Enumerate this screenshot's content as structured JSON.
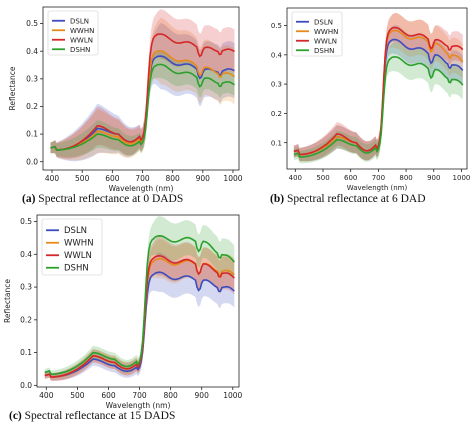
{
  "chart_data": [
    {
      "type": "line",
      "ylabel": "Reflectance",
      "xlabel": "Wavelength (nm)",
      "xlim": [
        370,
        1020
      ],
      "ylim": [
        -0.03,
        0.56
      ],
      "xticks": [
        400,
        500,
        600,
        700,
        800,
        900,
        1000
      ],
      "yticks": [
        0.0,
        0.1,
        0.2,
        0.3,
        0.4,
        0.5
      ],
      "legend_position": "top-left",
      "shaded_band": "spread around each series",
      "series": [
        {
          "name": "DSLN",
          "color": "#3b4cc0",
          "mean_at_x": {
            "400": 0.05,
            "550": 0.12,
            "700": 0.1,
            "760": 0.38,
            "900": 0.33,
            "1000": 0.33
          },
          "band_at_x": {
            "400": 0.02,
            "550": 0.09,
            "700": 0.04,
            "760": 0.12,
            "900": 0.1,
            "1000": 0.1
          }
        },
        {
          "name": "WWHN",
          "color": "#e88a1a",
          "mean_at_x": {
            "400": 0.05,
            "550": 0.11,
            "700": 0.09,
            "760": 0.4,
            "900": 0.34,
            "1000": 0.31
          },
          "band_at_x": {
            "400": 0.02,
            "550": 0.08,
            "700": 0.04,
            "760": 0.12,
            "900": 0.1,
            "1000": 0.1
          }
        },
        {
          "name": "WWLN",
          "color": "#d62728",
          "mean_at_x": {
            "400": 0.05,
            "550": 0.13,
            "700": 0.1,
            "760": 0.46,
            "900": 0.41,
            "1000": 0.4
          },
          "band_at_x": {
            "400": 0.02,
            "550": 0.07,
            "700": 0.04,
            "760": 0.09,
            "900": 0.08,
            "1000": 0.08
          }
        },
        {
          "name": "DSHN",
          "color": "#2ca02c",
          "mean_at_x": {
            "400": 0.05,
            "550": 0.1,
            "700": 0.08,
            "760": 0.35,
            "900": 0.3,
            "1000": 0.28
          },
          "band_at_x": {
            "400": 0.02,
            "550": 0.05,
            "700": 0.03,
            "760": 0.05,
            "900": 0.04,
            "1000": 0.04
          }
        }
      ],
      "caption_label": "(a)",
      "caption_text": " Spectral reflectance at 0 DADS"
    },
    {
      "type": "line",
      "ylabel": "",
      "xlabel": "Wavelength (nm)",
      "xlim": [
        370,
        1020
      ],
      "ylim": [
        0.01,
        0.56
      ],
      "xticks": [
        400,
        500,
        600,
        700,
        800,
        900,
        1000
      ],
      "yticks": [
        0.1,
        0.2,
        0.3,
        0.4,
        0.5
      ],
      "legend_position": "top-left",
      "shaded_band": "spread around each series",
      "series": [
        {
          "name": "DSLN",
          "color": "#3b4cc0",
          "mean_at_x": {
            "400": 0.07,
            "550": 0.12,
            "700": 0.1,
            "760": 0.45,
            "900": 0.4,
            "1000": 0.35
          },
          "band_at_x": {
            "400": 0.02,
            "550": 0.04,
            "700": 0.03,
            "760": 0.05,
            "900": 0.05,
            "1000": 0.05
          }
        },
        {
          "name": "WWHN",
          "color": "#e88a1a",
          "mean_at_x": {
            "400": 0.07,
            "550": 0.12,
            "700": 0.1,
            "760": 0.48,
            "900": 0.44,
            "1000": 0.38
          },
          "band_at_x": {
            "400": 0.02,
            "550": 0.04,
            "700": 0.03,
            "760": 0.06,
            "900": 0.06,
            "1000": 0.06
          }
        },
        {
          "name": "WWLN",
          "color": "#d62728",
          "mean_at_x": {
            "400": 0.07,
            "550": 0.13,
            "700": 0.1,
            "760": 0.49,
            "900": 0.45,
            "1000": 0.42
          },
          "band_at_x": {
            "400": 0.02,
            "550": 0.04,
            "700": 0.03,
            "760": 0.05,
            "900": 0.05,
            "1000": 0.05
          }
        },
        {
          "name": "DSHN",
          "color": "#2ca02c",
          "mean_at_x": {
            "400": 0.06,
            "550": 0.11,
            "700": 0.09,
            "760": 0.39,
            "900": 0.35,
            "1000": 0.3
          },
          "band_at_x": {
            "400": 0.02,
            "550": 0.03,
            "700": 0.03,
            "760": 0.05,
            "900": 0.05,
            "1000": 0.05
          }
        }
      ],
      "caption_label": "(b)",
      "caption_text": " Spectral reflectance at 6 DAD"
    },
    {
      "type": "line",
      "ylabel": "Reflectance",
      "xlabel": "Wavelength (nm)",
      "xlim": [
        370,
        1020
      ],
      "ylim": [
        -0.005,
        0.52
      ],
      "xticks": [
        400,
        500,
        600,
        700,
        800,
        900,
        1000
      ],
      "yticks": [
        0.0,
        0.1,
        0.2,
        0.3,
        0.4,
        0.5
      ],
      "legend_position": "top-left",
      "shaded_band": "spread around each series",
      "series": [
        {
          "name": "DSLN",
          "color": "#3b4cc0",
          "mean_at_x": {
            "400": 0.03,
            "550": 0.08,
            "700": 0.06,
            "760": 0.34,
            "900": 0.32,
            "1000": 0.29
          },
          "band_at_x": {
            "400": 0.01,
            "550": 0.02,
            "700": 0.02,
            "760": 0.06,
            "900": 0.05,
            "1000": 0.05
          }
        },
        {
          "name": "WWHN",
          "color": "#e88a1a",
          "mean_at_x": {
            "400": 0.03,
            "550": 0.09,
            "700": 0.07,
            "760": 0.38,
            "900": 0.37,
            "1000": 0.34
          },
          "band_at_x": {
            "400": 0.01,
            "550": 0.02,
            "700": 0.02,
            "760": 0.06,
            "900": 0.05,
            "1000": 0.05
          }
        },
        {
          "name": "WWLN",
          "color": "#d62728",
          "mean_at_x": {
            "400": 0.03,
            "550": 0.09,
            "700": 0.07,
            "760": 0.39,
            "900": 0.37,
            "1000": 0.33
          },
          "band_at_x": {
            "400": 0.01,
            "550": 0.02,
            "700": 0.02,
            "760": 0.06,
            "900": 0.05,
            "1000": 0.05
          }
        },
        {
          "name": "DSHN",
          "color": "#2ca02c",
          "mean_at_x": {
            "400": 0.04,
            "550": 0.1,
            "700": 0.08,
            "760": 0.45,
            "900": 0.44,
            "1000": 0.38
          },
          "band_at_x": {
            "400": 0.01,
            "550": 0.02,
            "700": 0.02,
            "760": 0.06,
            "900": 0.05,
            "1000": 0.05
          }
        }
      ],
      "caption_label": "(c)",
      "caption_text": " Spectral reflectance at 15 DADS"
    }
  ]
}
